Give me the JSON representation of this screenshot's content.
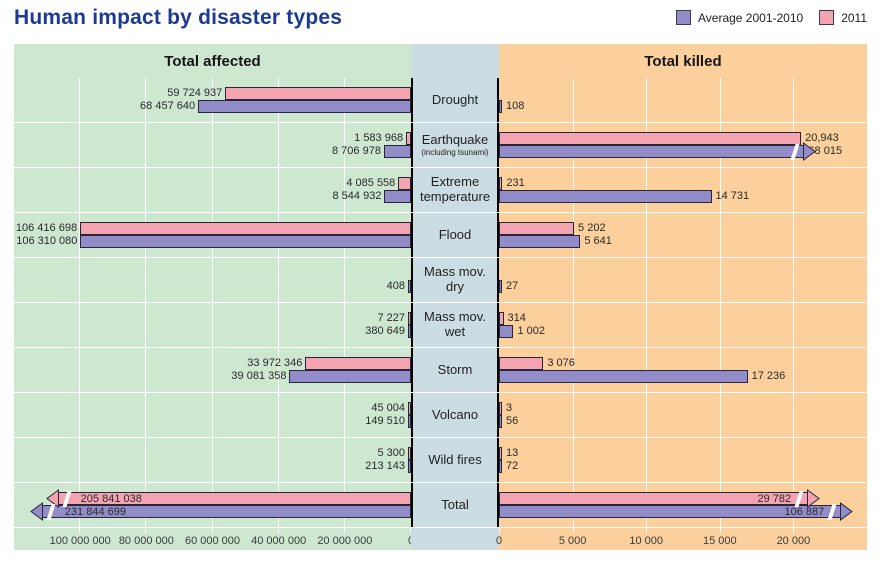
{
  "page": {
    "title": "Human impact by disaster types"
  },
  "legend": [
    {
      "label": "Average 2001-2010",
      "color": "#928cc8"
    },
    {
      "label": "2011",
      "color": "#f3a4b0"
    }
  ],
  "headers": {
    "affected": "Total affected",
    "killed": "Total killed"
  },
  "colors": {
    "title": "#1c3a94",
    "panel_affected_bg": "#cde7d0",
    "panel_killed_bg": "#fbd09c",
    "center_column_bg": "#ccdce3",
    "bar_border": "#26263a",
    "gridline": "#ffffff"
  },
  "chart_data": {
    "type": "bar",
    "orientation": "horizontal-bidirectional",
    "title": "Human impact by disaster types",
    "legend": [
      {
        "name": "Average 2001-2010",
        "color": "#928cc8"
      },
      {
        "name": "2011",
        "color": "#f3a4b0"
      }
    ],
    "panels": [
      {
        "id": "affected",
        "title": "Total affected",
        "direction": "right-to-left",
        "axis_max": 120000000,
        "render_scale": 0.94,
        "grid": true,
        "ticks": [
          {
            "v": 100000000,
            "t": "100 000 000"
          },
          {
            "v": 80000000,
            "t": "80 000 000"
          },
          {
            "v": 60000000,
            "t": "60 000 000"
          },
          {
            "v": 40000000,
            "t": "40 000 000"
          },
          {
            "v": 20000000,
            "t": "20 000 000"
          },
          {
            "v": 0,
            "t": "0"
          }
        ]
      },
      {
        "id": "killed",
        "title": "Total killed",
        "direction": "left-to-right",
        "axis_max": 25000,
        "render_scale": 0.98,
        "grid": true,
        "ticks": [
          {
            "v": 0,
            "t": "0"
          },
          {
            "v": 5000,
            "t": "5 000"
          },
          {
            "v": 10000,
            "t": "10 000"
          },
          {
            "v": 15000,
            "t": "15 000"
          },
          {
            "v": 20000,
            "t": "20 000"
          }
        ]
      }
    ],
    "categories": [
      "Drought",
      "Earthquake",
      "Extreme temperature",
      "Flood",
      "Mass mov. dry",
      "Mass mov. wet",
      "Storm",
      "Volcano",
      "Wild fires",
      "Total"
    ],
    "rows": [
      {
        "label": "Drought",
        "affected": {
          "y2011": {
            "v": 59724937,
            "t": "59 724 937"
          },
          "avg": {
            "v": 68457640,
            "t": "68 457 640"
          }
        },
        "killed": {
          "y2011": null,
          "avg": {
            "v": 108,
            "t": "108"
          }
        }
      },
      {
        "label": "Earthquake",
        "sublabel": "(including tsunami)",
        "affected": {
          "y2011": {
            "v": 1583968,
            "t": "1 583 968"
          },
          "avg": {
            "v": 8706978,
            "t": "8 706 978"
          }
        },
        "killed": {
          "y2011": {
            "v": 20943,
            "t": "20,943"
          },
          "avg": {
            "v": 68015,
            "t": "68 015",
            "overflow": true,
            "clamp_pct": 83
          }
        }
      },
      {
        "label": "Extreme temperature",
        "affected": {
          "y2011": {
            "v": 4085558,
            "t": "4 085 558"
          },
          "avg": {
            "v": 8544932,
            "t": "8 544 932"
          }
        },
        "killed": {
          "y2011": {
            "v": 231,
            "t": "231"
          },
          "avg": {
            "v": 14731,
            "t": "14 731"
          }
        }
      },
      {
        "label": "Flood",
        "affected": {
          "y2011": {
            "v": 106416698,
            "t": "106 416 698"
          },
          "avg": {
            "v": 106310080,
            "t": "106 310 080"
          }
        },
        "killed": {
          "y2011": {
            "v": 5202,
            "t": "5 202"
          },
          "avg": {
            "v": 5641,
            "t": "5 641"
          }
        }
      },
      {
        "label": "Mass mov. dry",
        "affected": {
          "y2011": null,
          "avg": {
            "v": 408,
            "t": "408"
          }
        },
        "killed": {
          "y2011": null,
          "avg": {
            "v": 27,
            "t": "27"
          }
        }
      },
      {
        "label": "Mass mov. wet",
        "affected": {
          "y2011": {
            "v": 7227,
            "t": "7 227"
          },
          "avg": {
            "v": 380649,
            "t": "380 649"
          }
        },
        "killed": {
          "y2011": {
            "v": 314,
            "t": "314"
          },
          "avg": {
            "v": 1002,
            "t": "1 002"
          }
        }
      },
      {
        "label": "Storm",
        "affected": {
          "y2011": {
            "v": 33972346,
            "t": "33 972 346"
          },
          "avg": {
            "v": 39081358,
            "t": "39 081 358"
          }
        },
        "killed": {
          "y2011": {
            "v": 3076,
            "t": "3 076"
          },
          "avg": {
            "v": 17236,
            "t": "17 236"
          }
        }
      },
      {
        "label": "Volcano",
        "affected": {
          "y2011": {
            "v": 45004,
            "t": "45 004"
          },
          "avg": {
            "v": 149510,
            "t": "149 510"
          }
        },
        "killed": {
          "y2011": {
            "v": 3,
            "t": "3"
          },
          "avg": {
            "v": 56,
            "t": "56"
          }
        }
      },
      {
        "label": "Wild fires",
        "affected": {
          "y2011": {
            "v": 5300,
            "t": "5 300"
          },
          "avg": {
            "v": 213143,
            "t": "213 143"
          }
        },
        "killed": {
          "y2011": {
            "v": 13,
            "t": "13"
          },
          "avg": {
            "v": 72,
            "t": "72"
          }
        }
      },
      {
        "label": "Total",
        "affected": {
          "y2011": {
            "v": 205841038,
            "t": "205 841 038",
            "overflow": true,
            "clamp_pct": 89,
            "label_inside": true
          },
          "avg": {
            "v": 231844699,
            "t": "231 844 699",
            "overflow": true,
            "clamp_pct": 93,
            "label_inside": true
          }
        },
        "killed": {
          "y2011": {
            "v": 29782,
            "t": "29 782",
            "overflow": true,
            "clamp_pct": 84,
            "label_inside": true
          },
          "avg": {
            "v": 106887,
            "t": "106 887",
            "overflow": true,
            "clamp_pct": 93,
            "label_inside": true
          }
        }
      }
    ]
  }
}
